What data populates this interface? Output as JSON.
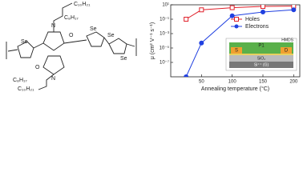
{
  "structure": {
    "labels": [
      "C₁₀H₂₁",
      "C₈H₁₇",
      "Se",
      "N",
      "O",
      "O",
      "N",
      "Se",
      "Se",
      "Se",
      "C₈H₁₇",
      "C₁₀H₂₁"
    ]
  },
  "chart_data": {
    "type": "line",
    "x_label": "Annealing temperature (°C)",
    "y_label": "μ (cm² V⁻¹ s⁻¹)",
    "x": [
      25,
      50,
      100,
      150,
      200
    ],
    "series": [
      {
        "name": "Holes",
        "color": "#e0202a",
        "marker": "square",
        "values": [
          0.1,
          2,
          4,
          6,
          6.5
        ]
      },
      {
        "name": "Electrons",
        "color": "#2040e0",
        "marker": "circle",
        "values": [
          1e-09,
          5e-05,
          0.3,
          1,
          2
        ]
      }
    ],
    "xlim": [
      0,
      210
    ],
    "xticks": [
      50,
      100,
      150,
      200
    ],
    "ylim": [
      1e-09,
      10
    ],
    "log_y": true,
    "yticks": [
      {
        "value": 10,
        "label": "10¹"
      },
      {
        "value": 0.1,
        "label": "10⁻¹"
      },
      {
        "value": 0.001,
        "label": "10⁻³"
      },
      {
        "value": 1e-05,
        "label": "10⁻⁵"
      },
      {
        "value": 1e-07,
        "label": "10⁻⁷"
      }
    ],
    "legend": "center-right",
    "inset": {
      "top": "P1",
      "coating": "HMDS",
      "source": "S",
      "drain": "D",
      "dielectric": "SiO₂",
      "gate": "Si⁺⁺ (G)"
    }
  }
}
